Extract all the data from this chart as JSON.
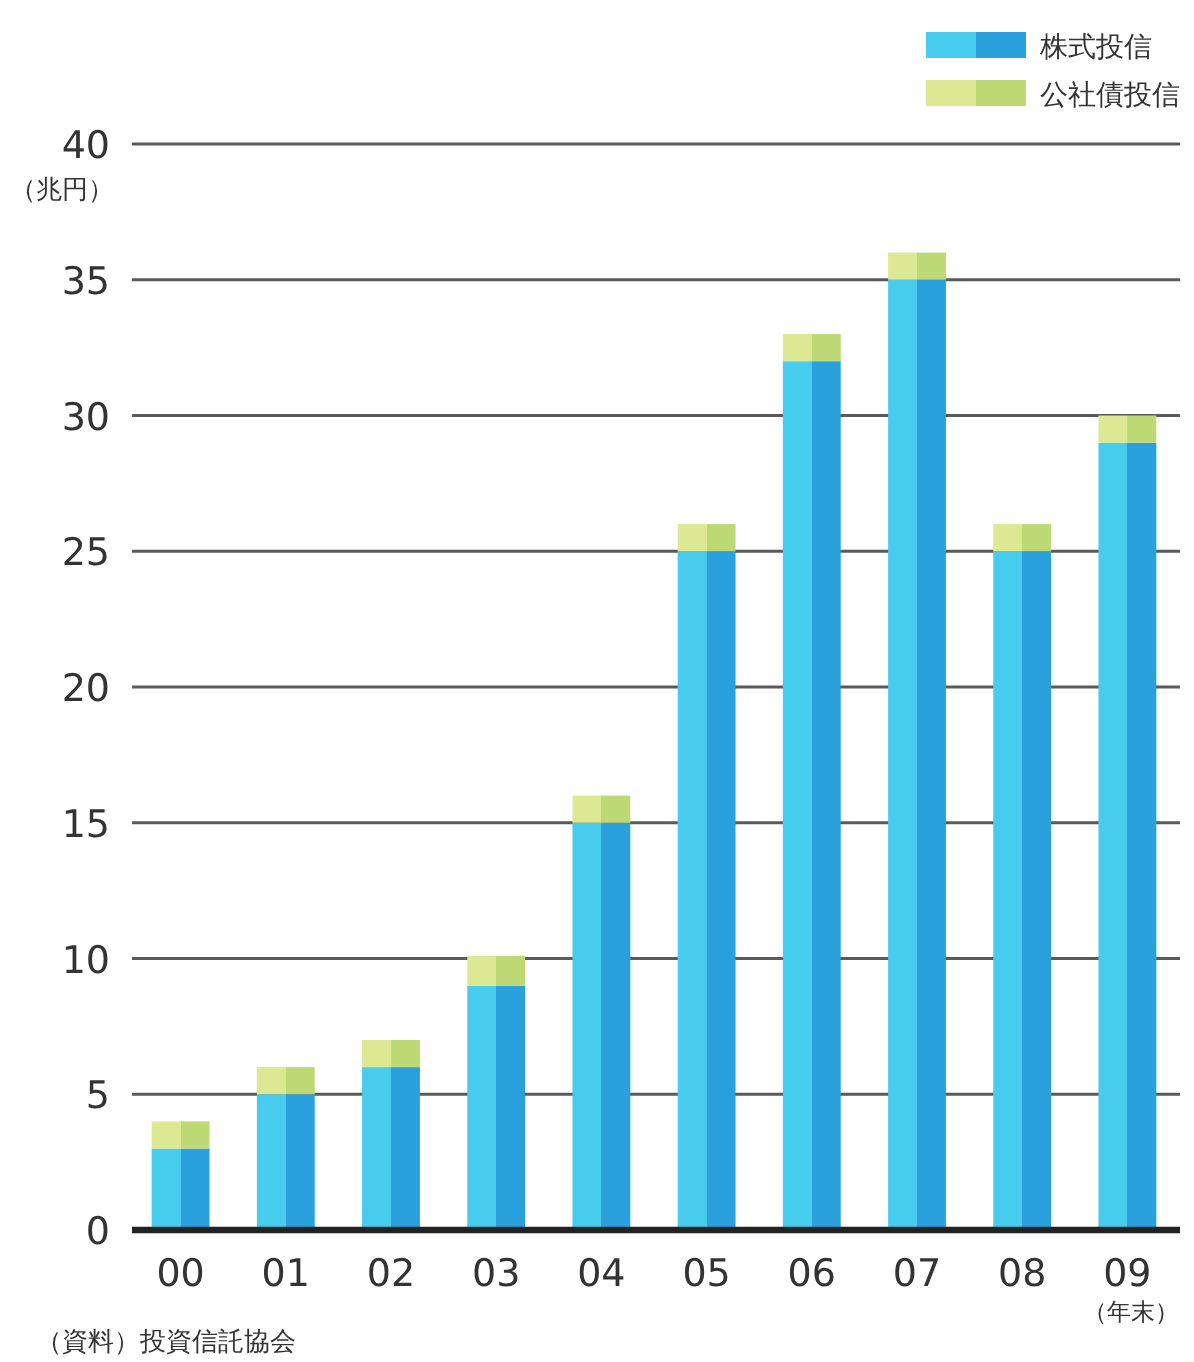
{
  "chart_data": {
    "type": "bar",
    "stacked": true,
    "categories": [
      "00",
      "01",
      "02",
      "03",
      "04",
      "05",
      "06",
      "07",
      "08",
      "09"
    ],
    "series": [
      {
        "name": "株式投信",
        "color": "#2aa1dc",
        "values": [
          3,
          5,
          6,
          9,
          15,
          25,
          32,
          35,
          25,
          29
        ]
      },
      {
        "name": "公社債投信",
        "color": "#bcd975",
        "values": [
          1,
          1,
          1,
          1.1,
          1,
          1,
          1,
          1,
          1,
          1
        ]
      }
    ],
    "ylim": [
      0,
      40
    ],
    "yticks": [
      0,
      5,
      10,
      15,
      20,
      25,
      30,
      35,
      40
    ],
    "ylabel": "（兆円）",
    "xlabel": "（年末）",
    "grid": "y",
    "legend": "top right",
    "annotations": [
      "（資料）投資信託協会"
    ]
  }
}
